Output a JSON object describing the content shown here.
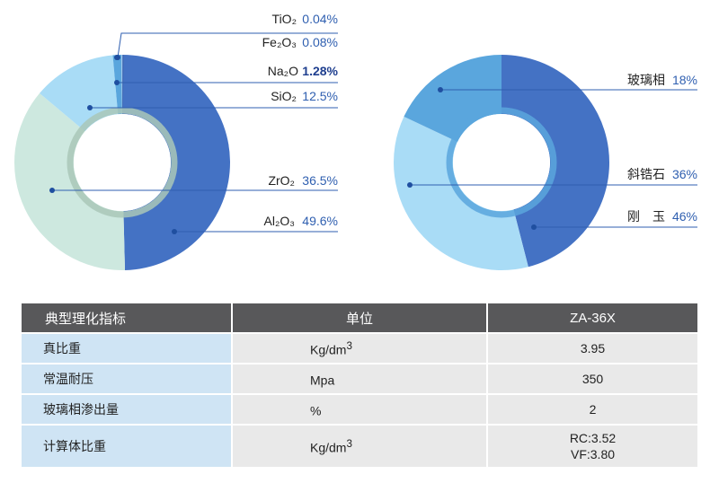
{
  "chart_data": [
    {
      "type": "pie",
      "variant": "donut",
      "categories": [
        "Al2O3",
        "ZrO2",
        "SiO2",
        "Na2O",
        "Fe2O3",
        "TiO2"
      ],
      "values": [
        49.6,
        36.5,
        12.5,
        1.28,
        0.08,
        0.04
      ],
      "labels": [
        {
          "name": "TiO₂",
          "value": "0.04%"
        },
        {
          "name": "Fe₂O₃",
          "value": "0.08%"
        },
        {
          "name": "Na₂O",
          "value": "1.28%"
        },
        {
          "name": "SiO₂",
          "value": "12.5%"
        },
        {
          "name": "ZrO₂",
          "value": "36.5%"
        },
        {
          "name": "Al₂O₃",
          "value": "49.6%"
        }
      ],
      "colors": {
        "Al2O3": "#4472c4",
        "ZrO2": "#cde8df",
        "SiO2": "#a9dcf6",
        "Na2O": "#5aa6dd",
        "Fe2O3": "#9cc5ea",
        "TiO2": "#3f66b0"
      },
      "title": "",
      "legend": "right-side leader labels"
    },
    {
      "type": "pie",
      "variant": "donut",
      "categories": [
        "刚玉",
        "斜锆石",
        "玻璃相"
      ],
      "values": [
        46,
        36,
        18
      ],
      "labels": [
        {
          "name": "玻璃相",
          "value": "18%"
        },
        {
          "name": "斜锆石",
          "value": "36%"
        },
        {
          "name": "刚　玉",
          "value": "46%"
        }
      ],
      "colors": {
        "刚玉": "#4472c4",
        "斜锆石": "#a9dcf6",
        "玻璃相": "#5aa6dd"
      },
      "title": "",
      "legend": "right-side leader labels"
    }
  ],
  "table": {
    "headers": [
      "典型理化指标",
      "单位",
      "ZA-36X"
    ],
    "rows": [
      {
        "name": "真比重",
        "unit_base": "Kg/dm",
        "unit_sup": "3",
        "value": [
          "3.95"
        ]
      },
      {
        "name": "常温耐压",
        "unit_base": "Mpa",
        "unit_sup": "",
        "value": [
          "350"
        ]
      },
      {
        "name": "玻璃相渗出量",
        "unit_base": "%",
        "unit_sup": "",
        "value": [
          "2"
        ]
      },
      {
        "name": "计算体比重",
        "unit_base": "Kg/dm",
        "unit_sup": "3",
        "value": [
          "RC:3.52",
          "VF:3.80"
        ]
      }
    ]
  }
}
